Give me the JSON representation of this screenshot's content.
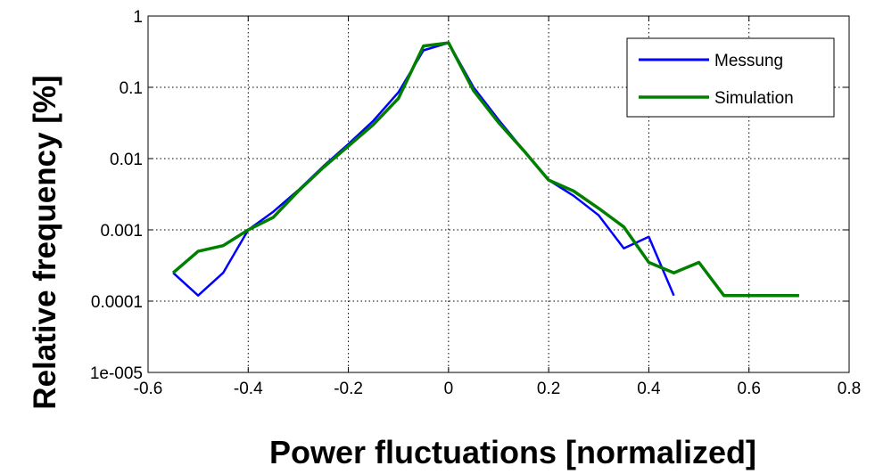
{
  "chart_data": {
    "type": "line",
    "title": "",
    "xlabel": "Power fluctuations [normalized]",
    "ylabel": "Relative frequency [%]",
    "xlim": [
      -0.6,
      0.8
    ],
    "ylim": [
      1e-05,
      1
    ],
    "yscale": "log",
    "grid": true,
    "legend_position": "top-right",
    "x_ticks": [
      "-0.6",
      "-0.4",
      "-0.2",
      "0",
      "0.2",
      "0.4",
      "0.6",
      "0.8"
    ],
    "y_ticks": [
      "1",
      "0.1",
      "0.01",
      "0.001",
      "0.0001",
      "1e-005"
    ],
    "series": [
      {
        "name": "Messung",
        "color": "#0000ff",
        "x": [
          -0.55,
          -0.5,
          -0.45,
          -0.4,
          -0.35,
          -0.3,
          -0.25,
          -0.2,
          -0.15,
          -0.1,
          -0.05,
          0,
          0.05,
          0.1,
          0.15,
          0.2,
          0.25,
          0.3,
          0.35,
          0.4,
          0.45
        ],
        "y": [
          0.00025,
          0.00012,
          0.00025,
          0.001,
          0.0018,
          0.0036,
          0.0078,
          0.016,
          0.034,
          0.085,
          0.33,
          0.42,
          0.1,
          0.035,
          0.013,
          0.005,
          0.003,
          0.0016,
          0.00055,
          0.0008,
          0.00012
        ]
      },
      {
        "name": "Simulation",
        "color": "#007f00",
        "x": [
          -0.55,
          -0.5,
          -0.45,
          -0.4,
          -0.35,
          -0.3,
          -0.25,
          -0.2,
          -0.15,
          -0.1,
          -0.05,
          0,
          0.05,
          0.1,
          0.15,
          0.2,
          0.25,
          0.3,
          0.35,
          0.4,
          0.45,
          0.5,
          0.55,
          0.6,
          0.65,
          0.7
        ],
        "y": [
          0.00025,
          0.0005,
          0.0006,
          0.001,
          0.0015,
          0.0035,
          0.0075,
          0.015,
          0.03,
          0.07,
          0.38,
          0.42,
          0.09,
          0.032,
          0.013,
          0.005,
          0.0035,
          0.002,
          0.0011,
          0.00035,
          0.00025,
          0.00035,
          0.00012,
          0.00012,
          0.00012,
          0.00012
        ]
      }
    ]
  },
  "colors": {
    "background": "#ffffff",
    "axis": "#000000",
    "grid": "#000000"
  }
}
